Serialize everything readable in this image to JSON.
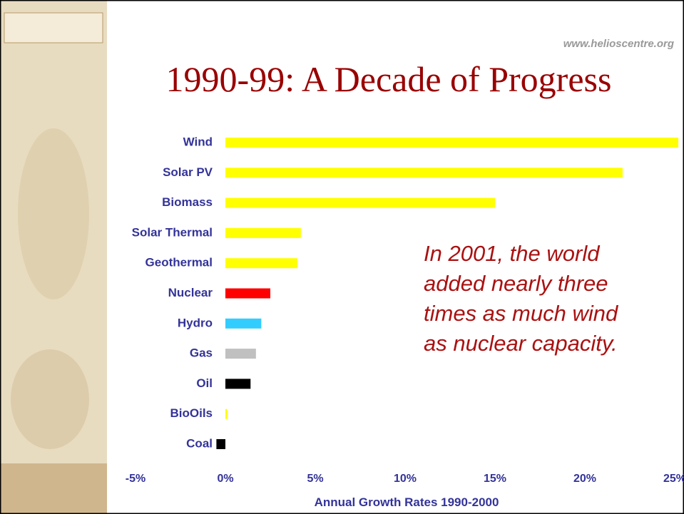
{
  "chart_data": {
    "type": "hbar",
    "title": "1990-99: A Decade of Progress",
    "site": "www.helioscentre.org",
    "annotation": [
      "In 2001, the world",
      "added nearly three",
      "times as much wind",
      "as nuclear capacity."
    ],
    "xlabel": "Annual Growth Rates 1990-2000",
    "categories": [
      "Wind",
      "Solar PV",
      "Biomass",
      "Solar Thermal",
      "Geothermal",
      "Nuclear",
      "Hydro",
      "Gas",
      "Oil",
      "BioOils",
      "Coal"
    ],
    "values": [
      25.2,
      22.1,
      15.0,
      4.2,
      4.0,
      2.5,
      2.0,
      1.7,
      1.4,
      0.1,
      -0.5
    ],
    "colors": [
      "#ffff00",
      "#ffff00",
      "#ffff00",
      "#ffff00",
      "#ffff00",
      "#ff0000",
      "#33ccff",
      "#c0c0c0",
      "#000000",
      "#ffff00",
      "#000000"
    ],
    "xlim": [
      -5,
      25
    ],
    "xticks": [
      {
        "value": -5,
        "label": "-5%"
      },
      {
        "value": 0,
        "label": "0%"
      },
      {
        "value": 5,
        "label": "5%"
      },
      {
        "value": 10,
        "label": "10%"
      },
      {
        "value": 15,
        "label": "15%"
      },
      {
        "value": 20,
        "label": "20%"
      },
      {
        "value": 25,
        "label": "25%"
      }
    ]
  }
}
